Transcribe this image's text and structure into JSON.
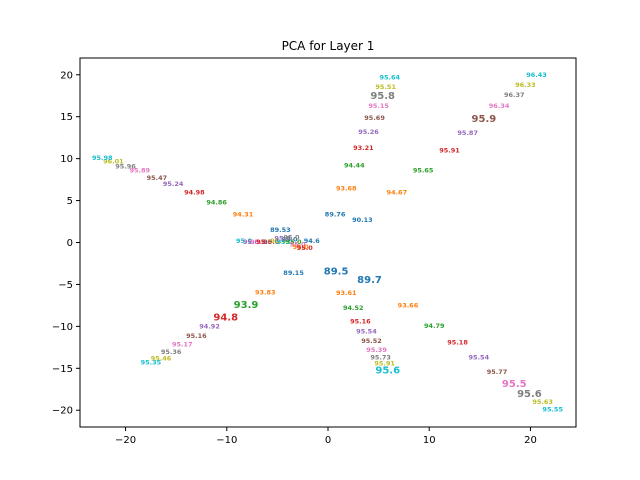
{
  "chart_data": {
    "type": "scatter",
    "title": "PCA for Layer 1",
    "xlabel": "",
    "ylabel": "",
    "xlim": [
      -24.5,
      24.5
    ],
    "ylim": [
      -22,
      22
    ],
    "xticks": [
      -20,
      -10,
      0,
      10,
      20
    ],
    "yticks": [
      -20,
      -15,
      -10,
      -5,
      0,
      5,
      10,
      15,
      20
    ],
    "xtick_labels": [
      "−20",
      "−10",
      "0",
      "10",
      "20"
    ],
    "ytick_labels": [
      "−20",
      "−15",
      "−10",
      "−5",
      "0",
      "5",
      "10",
      "15",
      "20"
    ],
    "grid": false,
    "palette": [
      "#1f77b4",
      "#ff7f0e",
      "#2ca02c",
      "#d62728",
      "#9467bd",
      "#8c564b",
      "#e377c2",
      "#7f7f7f",
      "#bcbd22",
      "#17becf"
    ],
    "points": [
      {
        "label": "89.53",
        "x": -4.7,
        "y": 1.5,
        "c": 0,
        "s": 6.5
      },
      {
        "label": "94.6",
        "x": -1.6,
        "y": 0.2,
        "c": 0,
        "s": 6.5
      },
      {
        "label": "89.15",
        "x": -3.4,
        "y": -3.6,
        "c": 0,
        "s": 6.5
      },
      {
        "label": "89.76",
        "x": 0.7,
        "y": 3.4,
        "c": 0,
        "s": 6.5
      },
      {
        "label": "90.13",
        "x": 3.4,
        "y": 2.7,
        "c": 0,
        "s": 6.5
      },
      {
        "label": "89.5",
        "x": 0.8,
        "y": -3.4,
        "c": 0,
        "s": 10
      },
      {
        "label": "89.7",
        "x": 4.1,
        "y": -4.4,
        "c": 0,
        "s": 10
      },
      {
        "label": "93.68",
        "x": 1.8,
        "y": 6.5,
        "c": 1,
        "s": 6.5
      },
      {
        "label": "94.67",
        "x": 6.8,
        "y": 6.0,
        "c": 1,
        "s": 6.5
      },
      {
        "label": "94.31",
        "x": -8.4,
        "y": 3.4,
        "c": 1,
        "s": 6.5
      },
      {
        "label": "93.83",
        "x": -6.2,
        "y": -5.9,
        "c": 1,
        "s": 6.5
      },
      {
        "label": "93.61",
        "x": 1.8,
        "y": -6.0,
        "c": 1,
        "s": 6.5
      },
      {
        "label": "93.66",
        "x": 7.9,
        "y": -7.5,
        "c": 1,
        "s": 6.5
      },
      {
        "label": "94.44",
        "x": 2.6,
        "y": 9.2,
        "c": 2,
        "s": 6.5
      },
      {
        "label": "95.65",
        "x": 9.4,
        "y": 8.6,
        "c": 2,
        "s": 6.5
      },
      {
        "label": "94.86",
        "x": -11.0,
        "y": 4.8,
        "c": 2,
        "s": 6.5
      },
      {
        "label": "93.9",
        "x": -8.1,
        "y": -7.4,
        "c": 2,
        "s": 10
      },
      {
        "label": "94.52",
        "x": 2.5,
        "y": -7.8,
        "c": 2,
        "s": 6.5
      },
      {
        "label": "94.79",
        "x": 10.5,
        "y": -9.9,
        "c": 2,
        "s": 6.5
      },
      {
        "label": "93.21",
        "x": 3.5,
        "y": 11.3,
        "c": 3,
        "s": 6.5
      },
      {
        "label": "95.91",
        "x": 12.0,
        "y": 11.0,
        "c": 3,
        "s": 6.5
      },
      {
        "label": "94.98",
        "x": -13.2,
        "y": 6.0,
        "c": 3,
        "s": 6.5
      },
      {
        "label": "94.8",
        "x": -10.1,
        "y": -8.9,
        "c": 3,
        "s": 10
      },
      {
        "label": "95.16",
        "x": 3.2,
        "y": -9.4,
        "c": 3,
        "s": 6.5
      },
      {
        "label": "95.18",
        "x": 12.8,
        "y": -11.9,
        "c": 3,
        "s": 6.5
      },
      {
        "label": "95.26",
        "x": 4.0,
        "y": 13.2,
        "c": 4,
        "s": 6.5
      },
      {
        "label": "95.87",
        "x": 13.8,
        "y": 13.1,
        "c": 4,
        "s": 6.5
      },
      {
        "label": "95.24",
        "x": -15.3,
        "y": 7.0,
        "c": 4,
        "s": 6.5
      },
      {
        "label": "94.92",
        "x": -11.7,
        "y": -10.0,
        "c": 4,
        "s": 6.5
      },
      {
        "label": "95.54",
        "x": 3.8,
        "y": -10.6,
        "c": 4,
        "s": 6.5
      },
      {
        "label": "95.54",
        "x": 14.9,
        "y": -13.7,
        "c": 4,
        "s": 6.5
      },
      {
        "label": "95.69",
        "x": 4.6,
        "y": 14.9,
        "c": 5,
        "s": 6.5
      },
      {
        "label": "95.9",
        "x": 15.4,
        "y": 14.8,
        "c": 5,
        "s": 10
      },
      {
        "label": "95.47",
        "x": -16.9,
        "y": 7.7,
        "c": 5,
        "s": 6.5
      },
      {
        "label": "95.16",
        "x": -13.0,
        "y": -11.1,
        "c": 5,
        "s": 6.5
      },
      {
        "label": "95.52",
        "x": 4.3,
        "y": -11.7,
        "c": 5,
        "s": 6.5
      },
      {
        "label": "95.77",
        "x": 16.7,
        "y": -15.4,
        "c": 5,
        "s": 6.5
      },
      {
        "label": "95.15",
        "x": 5.0,
        "y": 16.3,
        "c": 6,
        "s": 6.5
      },
      {
        "label": "96.34",
        "x": 16.9,
        "y": 16.3,
        "c": 6,
        "s": 6.5
      },
      {
        "label": "95.89",
        "x": -18.6,
        "y": 8.6,
        "c": 6,
        "s": 6.5
      },
      {
        "label": "95.17",
        "x": -14.4,
        "y": -12.1,
        "c": 6,
        "s": 6.5
      },
      {
        "label": "95.39",
        "x": 4.8,
        "y": -12.8,
        "c": 6,
        "s": 6.5
      },
      {
        "label": "95.5",
        "x": 18.4,
        "y": -16.8,
        "c": 6,
        "s": 10
      },
      {
        "label": "95.8",
        "x": 5.4,
        "y": 17.5,
        "c": 7,
        "s": 10
      },
      {
        "label": "96.37",
        "x": 18.4,
        "y": 17.6,
        "c": 7,
        "s": 6.5
      },
      {
        "label": "95.96",
        "x": -20.0,
        "y": 9.1,
        "c": 7,
        "s": 6.5
      },
      {
        "label": "95.36",
        "x": -15.5,
        "y": -13.0,
        "c": 7,
        "s": 6.5
      },
      {
        "label": "95.73",
        "x": 5.2,
        "y": -13.7,
        "c": 7,
        "s": 6.5
      },
      {
        "label": "95.6",
        "x": 19.9,
        "y": -18.0,
        "c": 7,
        "s": 10
      },
      {
        "label": "95.51",
        "x": 5.7,
        "y": 18.6,
        "c": 8,
        "s": 6.5
      },
      {
        "label": "96.33",
        "x": 19.5,
        "y": 18.8,
        "c": 8,
        "s": 6.5
      },
      {
        "label": "96.01",
        "x": -21.2,
        "y": 9.7,
        "c": 8,
        "s": 6.5
      },
      {
        "label": "95.46",
        "x": -16.5,
        "y": -13.8,
        "c": 8,
        "s": 6.5
      },
      {
        "label": "95.91",
        "x": 5.6,
        "y": -14.4,
        "c": 8,
        "s": 6.5
      },
      {
        "label": "95.63",
        "x": 21.2,
        "y": -19.0,
        "c": 8,
        "s": 6.5
      },
      {
        "label": "95.64",
        "x": 6.1,
        "y": 19.7,
        "c": 9,
        "s": 6.5
      },
      {
        "label": "96.43",
        "x": 20.6,
        "y": 20.0,
        "c": 9,
        "s": 6.5
      },
      {
        "label": "95.98",
        "x": -22.3,
        "y": 10.1,
        "c": 9,
        "s": 6.5
      },
      {
        "label": "95.35",
        "x": -17.5,
        "y": -14.3,
        "c": 9,
        "s": 6.5
      },
      {
        "label": "95.6",
        "x": 5.9,
        "y": -15.2,
        "c": 9,
        "s": 10
      },
      {
        "label": "95.55",
        "x": 22.2,
        "y": -19.9,
        "c": 9,
        "s": 6.5
      },
      {
        "label": "95.0",
        "x": -8.3,
        "y": 0.2,
        "c": 9,
        "s": 6.5
      },
      {
        "label": "95.0",
        "x": -7.6,
        "y": 0.1,
        "c": 4,
        "s": 6.5
      },
      {
        "label": "95.0",
        "x": -6.9,
        "y": 0.1,
        "c": 6,
        "s": 6.5
      },
      {
        "label": "95.0",
        "x": -6.3,
        "y": 0.1,
        "c": 3,
        "s": 6.5
      },
      {
        "label": "95.0",
        "x": -5.6,
        "y": 0.1,
        "c": 5,
        "s": 6.5
      },
      {
        "label": "95.0",
        "x": -4.9,
        "y": 0.2,
        "c": 8,
        "s": 6.5
      },
      {
        "label": "95.0",
        "x": -4.3,
        "y": 0.1,
        "c": 9,
        "s": 6.5
      },
      {
        "label": "95.0",
        "x": -3.8,
        "y": 0.4,
        "c": 0,
        "s": 6.5
      },
      {
        "label": "95.0",
        "x": -3.4,
        "y": 0.1,
        "c": 2,
        "s": 6.5
      },
      {
        "label": "95.0",
        "x": -3.0,
        "y": -0.2,
        "c": 6,
        "s": 6.5
      },
      {
        "label": "95.0",
        "x": -2.7,
        "y": -0.5,
        "c": 1,
        "s": 6.5
      },
      {
        "label": "95.0",
        "x": -2.3,
        "y": -0.6,
        "c": 3,
        "s": 6.5
      },
      {
        "label": "95.0",
        "x": -4.5,
        "y": 0.5,
        "c": 4,
        "s": 6.5
      },
      {
        "label": "95.0",
        "x": -3.6,
        "y": 0.6,
        "c": 7,
        "s": 6.5
      }
    ]
  }
}
